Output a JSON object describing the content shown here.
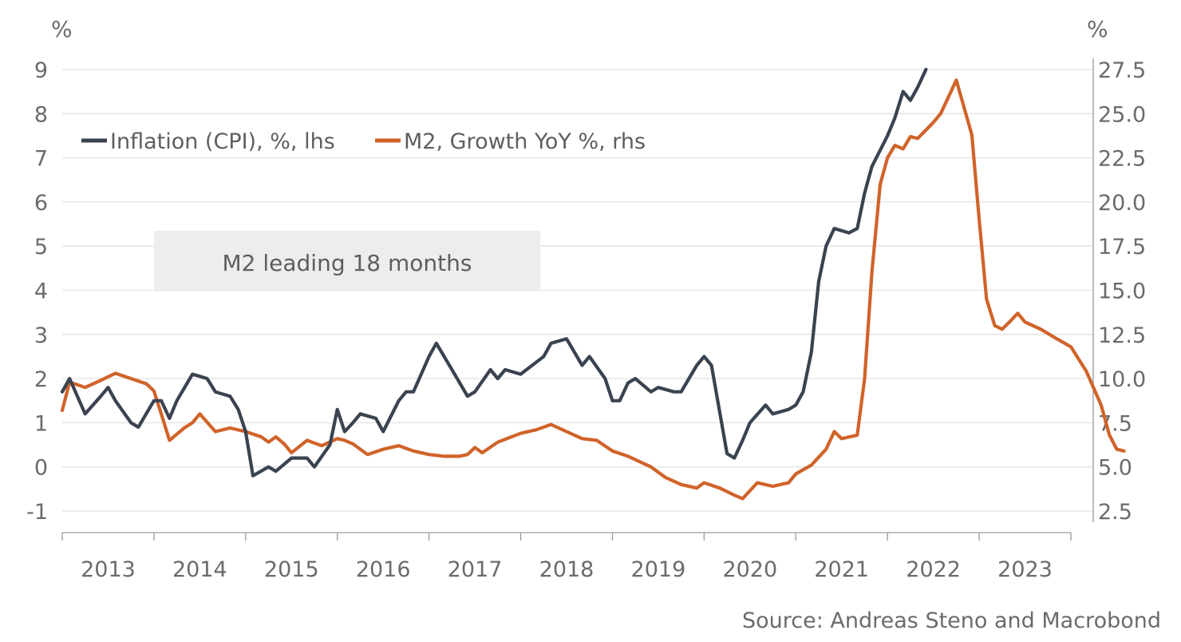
{
  "chart_data": {
    "type": "line",
    "left_axis": {
      "unit_label": "%",
      "ylim": [
        -1,
        9
      ],
      "ticks": [
        -1,
        0,
        1,
        2,
        3,
        4,
        5,
        6,
        7,
        8,
        9
      ]
    },
    "right_axis": {
      "unit_label": "%",
      "ylim": [
        2.5,
        27.5
      ],
      "ticks": [
        "2.5",
        "5.0",
        "7.5",
        "10.0",
        "12.5",
        "15.0",
        "17.5",
        "20.0",
        "22.5",
        "25.0",
        "27.5"
      ]
    },
    "x_axis": {
      "labels": [
        "2013",
        "2014",
        "2015",
        "2016",
        "2017",
        "2018",
        "2019",
        "2020",
        "2021",
        "2022",
        "2023"
      ]
    },
    "grid": true,
    "legend_position": "top-left",
    "series": [
      {
        "name": "Inflation (CPI), %, lhs",
        "axis": "left",
        "color": "#3a4350",
        "points": [
          [
            2013.0,
            1.7
          ],
          [
            2013.08,
            2.0
          ],
          [
            2013.25,
            1.2
          ],
          [
            2013.42,
            1.6
          ],
          [
            2013.5,
            1.8
          ],
          [
            2013.58,
            1.5
          ],
          [
            2013.75,
            1.0
          ],
          [
            2013.83,
            0.9
          ],
          [
            2014.0,
            1.5
          ],
          [
            2014.08,
            1.5
          ],
          [
            2014.17,
            1.1
          ],
          [
            2014.25,
            1.5
          ],
          [
            2014.42,
            2.1
          ],
          [
            2014.58,
            2.0
          ],
          [
            2014.67,
            1.7
          ],
          [
            2014.83,
            1.6
          ],
          [
            2014.92,
            1.3
          ],
          [
            2015.0,
            0.8
          ],
          [
            2015.08,
            -0.2
          ],
          [
            2015.25,
            -0.0
          ],
          [
            2015.33,
            -0.1
          ],
          [
            2015.5,
            0.2
          ],
          [
            2015.67,
            0.2
          ],
          [
            2015.75,
            0.0
          ],
          [
            2015.92,
            0.5
          ],
          [
            2016.0,
            1.3
          ],
          [
            2016.08,
            0.8
          ],
          [
            2016.17,
            1.0
          ],
          [
            2016.25,
            1.2
          ],
          [
            2016.42,
            1.1
          ],
          [
            2016.5,
            0.8
          ],
          [
            2016.67,
            1.5
          ],
          [
            2016.75,
            1.7
          ],
          [
            2016.83,
            1.7
          ],
          [
            2017.0,
            2.5
          ],
          [
            2017.08,
            2.8
          ],
          [
            2017.25,
            2.2
          ],
          [
            2017.42,
            1.6
          ],
          [
            2017.5,
            1.7
          ],
          [
            2017.67,
            2.2
          ],
          [
            2017.75,
            2.0
          ],
          [
            2017.83,
            2.2
          ],
          [
            2018.0,
            2.1
          ],
          [
            2018.25,
            2.5
          ],
          [
            2018.33,
            2.8
          ],
          [
            2018.5,
            2.9
          ],
          [
            2018.67,
            2.3
          ],
          [
            2018.75,
            2.5
          ],
          [
            2018.92,
            2.0
          ],
          [
            2019.0,
            1.5
          ],
          [
            2019.08,
            1.5
          ],
          [
            2019.17,
            1.9
          ],
          [
            2019.25,
            2.0
          ],
          [
            2019.42,
            1.7
          ],
          [
            2019.5,
            1.8
          ],
          [
            2019.67,
            1.7
          ],
          [
            2019.75,
            1.7
          ],
          [
            2019.92,
            2.3
          ],
          [
            2020.0,
            2.5
          ],
          [
            2020.08,
            2.3
          ],
          [
            2020.25,
            0.3
          ],
          [
            2020.33,
            0.2
          ],
          [
            2020.42,
            0.6
          ],
          [
            2020.5,
            1.0
          ],
          [
            2020.67,
            1.4
          ],
          [
            2020.75,
            1.2
          ],
          [
            2020.92,
            1.3
          ],
          [
            2021.0,
            1.4
          ],
          [
            2021.08,
            1.7
          ],
          [
            2021.17,
            2.6
          ],
          [
            2021.25,
            4.2
          ],
          [
            2021.33,
            5.0
          ],
          [
            2021.42,
            5.4
          ],
          [
            2021.58,
            5.3
          ],
          [
            2021.67,
            5.4
          ],
          [
            2021.75,
            6.2
          ],
          [
            2021.83,
            6.8
          ],
          [
            2022.0,
            7.5
          ],
          [
            2022.08,
            7.9
          ],
          [
            2022.17,
            8.5
          ],
          [
            2022.25,
            8.3
          ],
          [
            2022.33,
            8.6
          ],
          [
            2022.42,
            9.0
          ]
        ]
      },
      {
        "name": "M2, Growth YoY %, rhs",
        "axis": "right",
        "color": "#d0632a",
        "points": [
          [
            2013.0,
            8.2
          ],
          [
            2013.08,
            9.8
          ],
          [
            2013.25,
            9.5
          ],
          [
            2013.42,
            9.9
          ],
          [
            2013.58,
            10.3
          ],
          [
            2013.75,
            10.0
          ],
          [
            2013.92,
            9.7
          ],
          [
            2014.0,
            9.3
          ],
          [
            2014.08,
            8.0
          ],
          [
            2014.17,
            6.5
          ],
          [
            2014.33,
            7.2
          ],
          [
            2014.42,
            7.5
          ],
          [
            2014.5,
            8.0
          ],
          [
            2014.67,
            7.0
          ],
          [
            2014.83,
            7.2
          ],
          [
            2015.0,
            7.0
          ],
          [
            2015.17,
            6.7
          ],
          [
            2015.25,
            6.4
          ],
          [
            2015.33,
            6.7
          ],
          [
            2015.42,
            6.3
          ],
          [
            2015.5,
            5.8
          ],
          [
            2015.67,
            6.5
          ],
          [
            2015.83,
            6.2
          ],
          [
            2016.0,
            6.6
          ],
          [
            2016.08,
            6.5
          ],
          [
            2016.17,
            6.3
          ],
          [
            2016.33,
            5.7
          ],
          [
            2016.5,
            6.0
          ],
          [
            2016.67,
            6.2
          ],
          [
            2016.83,
            5.9
          ],
          [
            2017.0,
            5.7
          ],
          [
            2017.17,
            5.6
          ],
          [
            2017.33,
            5.6
          ],
          [
            2017.42,
            5.7
          ],
          [
            2017.5,
            6.1
          ],
          [
            2017.58,
            5.8
          ],
          [
            2017.75,
            6.4
          ],
          [
            2018.0,
            6.9
          ],
          [
            2018.17,
            7.1
          ],
          [
            2018.33,
            7.4
          ],
          [
            2018.5,
            7.0
          ],
          [
            2018.67,
            6.6
          ],
          [
            2018.83,
            6.5
          ],
          [
            2019.0,
            5.9
          ],
          [
            2019.17,
            5.6
          ],
          [
            2019.42,
            5.0
          ],
          [
            2019.58,
            4.4
          ],
          [
            2019.75,
            4.0
          ],
          [
            2019.92,
            3.8
          ],
          [
            2020.0,
            4.1
          ],
          [
            2020.17,
            3.8
          ],
          [
            2020.33,
            3.4
          ],
          [
            2020.42,
            3.2
          ],
          [
            2020.58,
            4.1
          ],
          [
            2020.75,
            3.9
          ],
          [
            2020.92,
            4.1
          ],
          [
            2021.0,
            4.6
          ],
          [
            2021.17,
            5.1
          ],
          [
            2021.33,
            6.0
          ],
          [
            2021.42,
            7.0
          ],
          [
            2021.5,
            6.6
          ],
          [
            2021.67,
            6.8
          ],
          [
            2021.75,
            10.0
          ],
          [
            2021.83,
            16.0
          ],
          [
            2021.92,
            21.0
          ],
          [
            2022.0,
            22.5
          ],
          [
            2022.08,
            23.2
          ],
          [
            2022.17,
            23.0
          ],
          [
            2022.25,
            23.7
          ],
          [
            2022.33,
            23.6
          ],
          [
            2022.5,
            24.5
          ],
          [
            2022.58,
            25.0
          ],
          [
            2022.67,
            26.0
          ],
          [
            2022.75,
            26.9
          ],
          [
            2022.92,
            23.8
          ],
          [
            2023.0,
            19.0
          ],
          [
            2023.08,
            14.5
          ],
          [
            2023.17,
            13.0
          ],
          [
            2023.25,
            12.8
          ],
          [
            2023.33,
            13.2
          ],
          [
            2023.42,
            13.7
          ],
          [
            2023.5,
            13.2
          ],
          [
            2023.67,
            12.8
          ],
          [
            2023.83,
            12.3
          ],
          [
            2024.0,
            11.8
          ],
          [
            2024.17,
            10.4
          ],
          [
            2024.33,
            8.5
          ],
          [
            2024.42,
            6.8
          ],
          [
            2024.5,
            6.0
          ],
          [
            2024.58,
            5.9
          ]
        ]
      }
    ],
    "annotation": "M2 leading 18 months",
    "source": "Source: Andreas Steno and Macrobond"
  }
}
